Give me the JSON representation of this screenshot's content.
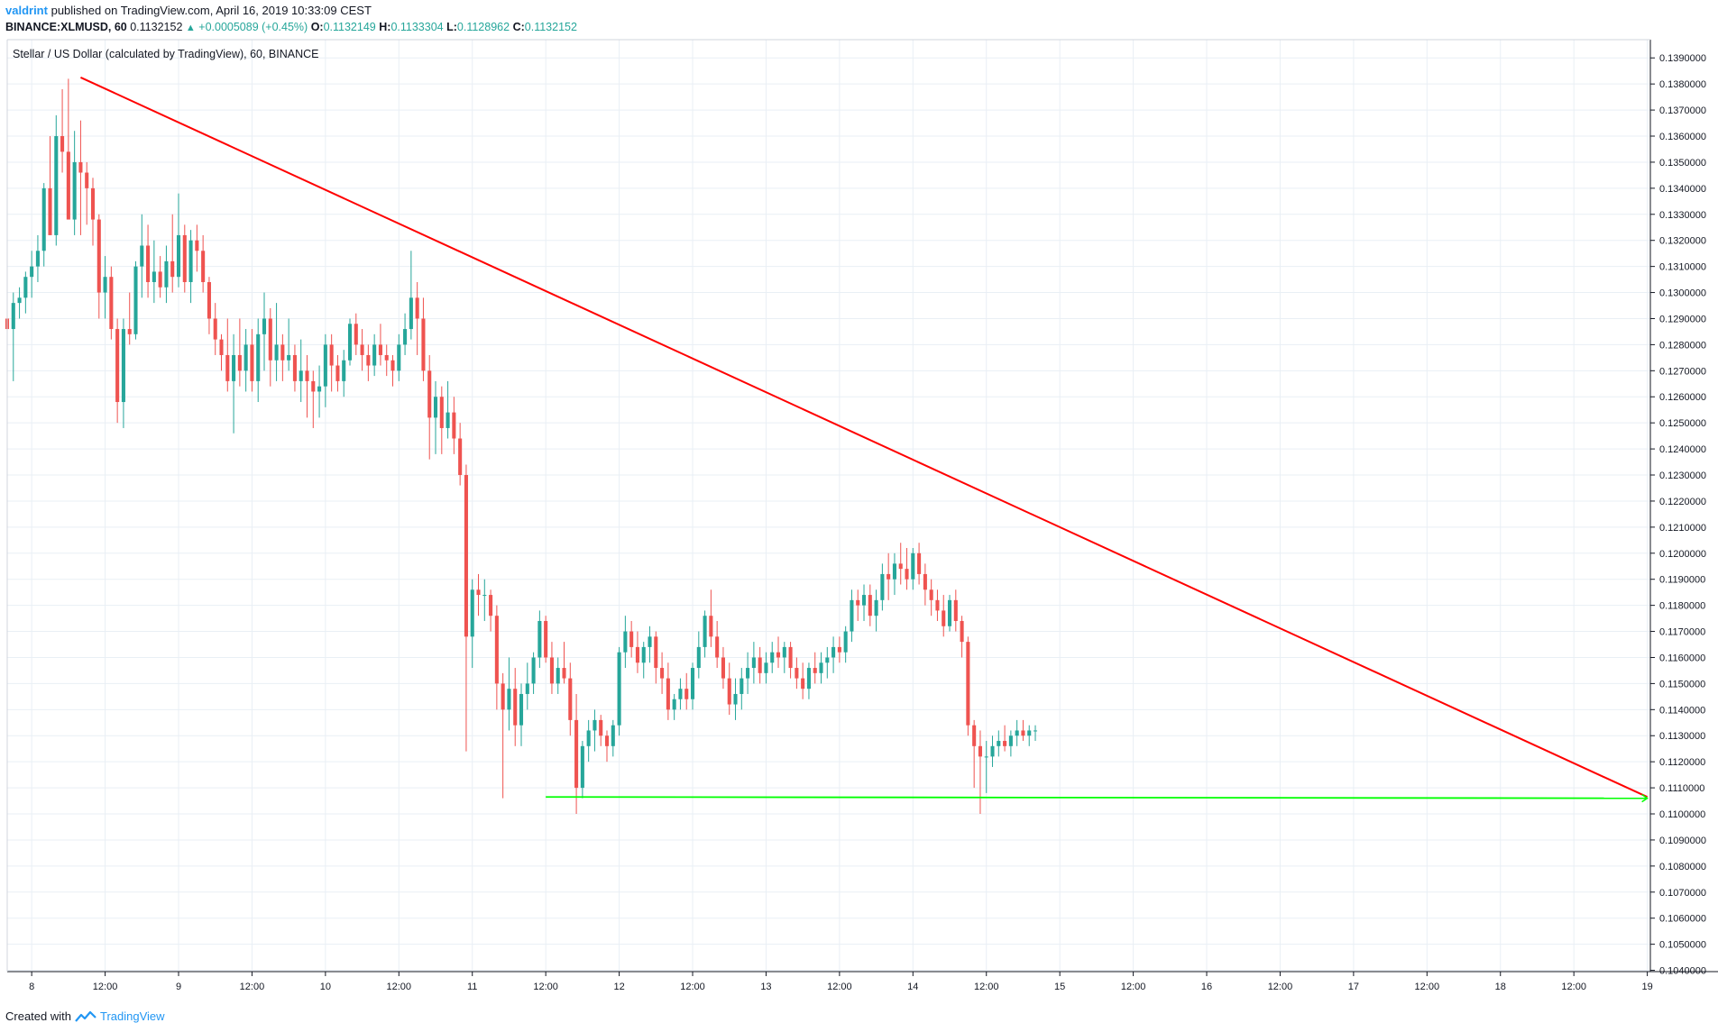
{
  "header": {
    "author": "valdrint",
    "published": "published on TradingView.com, April 16, 2019 10:33:09 CEST",
    "symbol": "BINANCE:XLMUSD, 60",
    "last": "0.1132152",
    "change": "+0.0005089 (+0.45%)",
    "o_label": "O:",
    "o_value": "0.1132149",
    "h_label": "H:",
    "h_value": "0.1133304",
    "l_label": "L:",
    "l_value": "0.1128962",
    "c_label": "C:",
    "c_value": "0.1132152"
  },
  "legend_title": "Stellar / US Dollar (calculated by TradingView), 60, BINANCE",
  "footer": {
    "created_with": "Created with",
    "brand": "TradingView"
  },
  "colors": {
    "up": "#26a69a",
    "down": "#ef5350",
    "resistance": "#ff0000",
    "support": "#00ff00",
    "grid": "#e9eff5",
    "axis": "#131722",
    "brand": "#2196f3"
  },
  "chart_data": {
    "type": "candlestick",
    "title": "Stellar / US Dollar (calculated by TradingView), 60, BINANCE",
    "interval_minutes": 60,
    "x_tick_labels": [
      "8",
      "12:00",
      "9",
      "12:00",
      "10",
      "12:00",
      "11",
      "12:00",
      "12",
      "12:00",
      "13",
      "12:00",
      "14",
      "12:00",
      "15",
      "12:00",
      "16",
      "12:00",
      "17",
      "12:00",
      "18",
      "12:00",
      "19"
    ],
    "x_tick_times": [
      "2019-04-08T00:00",
      "2019-04-08T12:00",
      "2019-04-09T00:00",
      "2019-04-09T12:00",
      "2019-04-10T00:00",
      "2019-04-10T12:00",
      "2019-04-11T00:00",
      "2019-04-11T12:00",
      "2019-04-12T00:00",
      "2019-04-12T12:00",
      "2019-04-13T00:00",
      "2019-04-13T12:00",
      "2019-04-14T00:00",
      "2019-04-14T12:00",
      "2019-04-15T00:00",
      "2019-04-15T12:00",
      "2019-04-16T00:00",
      "2019-04-16T12:00",
      "2019-04-17T00:00",
      "2019-04-17T12:00",
      "2019-04-18T00:00",
      "2019-04-18T12:00",
      "2019-04-19T00:00"
    ],
    "x_range": [
      "2019-04-07T20:00",
      "2019-04-19T00:30"
    ],
    "y_tick_labels": [
      "0.1040000",
      "0.1050000",
      "0.1060000",
      "0.1070000",
      "0.1080000",
      "0.1090000",
      "0.1100000",
      "0.1110000",
      "0.1120000",
      "0.1130000",
      "0.1140000",
      "0.1150000",
      "0.1160000",
      "0.1170000",
      "0.1180000",
      "0.1190000",
      "0.1200000",
      "0.1210000",
      "0.1220000",
      "0.1230000",
      "0.1240000",
      "0.1250000",
      "0.1260000",
      "0.1270000",
      "0.1280000",
      "0.1290000",
      "0.1300000",
      "0.1310000",
      "0.1320000",
      "0.1330000",
      "0.1340000",
      "0.1350000",
      "0.1360000",
      "0.1370000",
      "0.1380000",
      "0.1390000"
    ],
    "y_range": [
      0.10395,
      0.1397
    ],
    "start_time": "2019-04-07T20:00",
    "series_ohlc": [
      [
        0.129,
        0.1302,
        0.1284,
        0.1286
      ],
      [
        0.1286,
        0.13,
        0.1266,
        0.1296
      ],
      [
        0.1296,
        0.1302,
        0.129,
        0.1298
      ],
      [
        0.1298,
        0.1308,
        0.1292,
        0.1306
      ],
      [
        0.1306,
        0.1316,
        0.1298,
        0.131
      ],
      [
        0.131,
        0.1322,
        0.1304,
        0.1316
      ],
      [
        0.1316,
        0.1342,
        0.131,
        0.134
      ],
      [
        0.134,
        0.136,
        0.133,
        0.1322
      ],
      [
        0.1322,
        0.1368,
        0.1318,
        0.136
      ],
      [
        0.136,
        0.1378,
        0.1346,
        0.1354
      ],
      [
        0.1354,
        0.1382,
        0.133,
        0.1328
      ],
      [
        0.1328,
        0.1362,
        0.1322,
        0.135
      ],
      [
        0.135,
        0.1366,
        0.1322,
        0.1346
      ],
      [
        0.1346,
        0.135,
        0.1326,
        0.134
      ],
      [
        0.134,
        0.1344,
        0.1318,
        0.1328
      ],
      [
        0.1328,
        0.133,
        0.129,
        0.13
      ],
      [
        0.13,
        0.1314,
        0.129,
        0.1306
      ],
      [
        0.1306,
        0.131,
        0.1282,
        0.1286
      ],
      [
        0.1286,
        0.129,
        0.125,
        0.1258
      ],
      [
        0.1258,
        0.129,
        0.1248,
        0.1286
      ],
      [
        0.1286,
        0.13,
        0.128,
        0.1284
      ],
      [
        0.1284,
        0.1312,
        0.1282,
        0.131
      ],
      [
        0.131,
        0.133,
        0.1298,
        0.1318
      ],
      [
        0.1318,
        0.1326,
        0.1298,
        0.1304
      ],
      [
        0.1304,
        0.132,
        0.1296,
        0.1308
      ],
      [
        0.1308,
        0.1314,
        0.1298,
        0.1302
      ],
      [
        0.1302,
        0.1318,
        0.1296,
        0.1312
      ],
      [
        0.1312,
        0.133,
        0.13,
        0.1306
      ],
      [
        0.1306,
        0.1338,
        0.1302,
        0.1322
      ],
      [
        0.1322,
        0.1326,
        0.13,
        0.1304
      ],
      [
        0.1304,
        0.1324,
        0.1296,
        0.132
      ],
      [
        0.132,
        0.1326,
        0.1308,
        0.1316
      ],
      [
        0.1316,
        0.1322,
        0.13,
        0.1304
      ],
      [
        0.1304,
        0.1306,
        0.1284,
        0.129
      ],
      [
        0.129,
        0.1296,
        0.1276,
        0.1282
      ],
      [
        0.1282,
        0.1284,
        0.127,
        0.1276
      ],
      [
        0.1276,
        0.129,
        0.1262,
        0.1266
      ],
      [
        0.1266,
        0.1284,
        0.1246,
        0.1276
      ],
      [
        0.1276,
        0.129,
        0.1264,
        0.127
      ],
      [
        0.127,
        0.1286,
        0.1262,
        0.128
      ],
      [
        0.128,
        0.1286,
        0.1262,
        0.1266
      ],
      [
        0.1266,
        0.129,
        0.1258,
        0.1284
      ],
      [
        0.1284,
        0.13,
        0.127,
        0.129
      ],
      [
        0.129,
        0.1294,
        0.1264,
        0.1274
      ],
      [
        0.1274,
        0.1296,
        0.1266,
        0.128
      ],
      [
        0.128,
        0.1284,
        0.1266,
        0.1274
      ],
      [
        0.1274,
        0.129,
        0.127,
        0.1276
      ],
      [
        0.1276,
        0.128,
        0.1262,
        0.1266
      ],
      [
        0.1266,
        0.1282,
        0.1258,
        0.127
      ],
      [
        0.127,
        0.1276,
        0.1252,
        0.1266
      ],
      [
        0.1266,
        0.127,
        0.1248,
        0.1262
      ],
      [
        0.1262,
        0.1272,
        0.1252,
        0.1264
      ],
      [
        0.1264,
        0.1284,
        0.1256,
        0.128
      ],
      [
        0.128,
        0.1284,
        0.1262,
        0.1272
      ],
      [
        0.1272,
        0.1276,
        0.1262,
        0.1266
      ],
      [
        0.1266,
        0.1278,
        0.126,
        0.1274
      ],
      [
        0.1274,
        0.129,
        0.1272,
        0.1288
      ],
      [
        0.1288,
        0.1292,
        0.1276,
        0.128
      ],
      [
        0.128,
        0.1286,
        0.127,
        0.1276
      ],
      [
        0.1276,
        0.128,
        0.1266,
        0.1272
      ],
      [
        0.1272,
        0.1284,
        0.1268,
        0.128
      ],
      [
        0.128,
        0.1288,
        0.1272,
        0.1276
      ],
      [
        0.1276,
        0.128,
        0.1268,
        0.1274
      ],
      [
        0.1274,
        0.1276,
        0.1264,
        0.127
      ],
      [
        0.127,
        0.1284,
        0.1266,
        0.128
      ],
      [
        0.128,
        0.1292,
        0.1276,
        0.1286
      ],
      [
        0.1286,
        0.1316,
        0.1282,
        0.1298
      ],
      [
        0.1298,
        0.1304,
        0.1276,
        0.129
      ],
      [
        0.129,
        0.1298,
        0.1266,
        0.127
      ],
      [
        0.127,
        0.1276,
        0.1236,
        0.1252
      ],
      [
        0.1252,
        0.1266,
        0.1238,
        0.126
      ],
      [
        0.126,
        0.1264,
        0.1238,
        0.1248
      ],
      [
        0.1248,
        0.1266,
        0.1244,
        0.1254
      ],
      [
        0.1254,
        0.126,
        0.1238,
        0.1244
      ],
      [
        0.1244,
        0.125,
        0.1226,
        0.123
      ],
      [
        0.123,
        0.1234,
        0.1124,
        0.1168
      ],
      [
        0.1168,
        0.119,
        0.1156,
        0.1186
      ],
      [
        0.1186,
        0.1192,
        0.1176,
        0.1184
      ],
      [
        0.1184,
        0.119,
        0.1174,
        0.1184
      ],
      [
        0.1184,
        0.1186,
        0.117,
        0.1176
      ],
      [
        0.1176,
        0.118,
        0.114,
        0.115
      ],
      [
        0.115,
        0.1154,
        0.1106,
        0.114
      ],
      [
        0.114,
        0.116,
        0.1132,
        0.1148
      ],
      [
        0.1148,
        0.1156,
        0.1126,
        0.1134
      ],
      [
        0.1134,
        0.115,
        0.1126,
        0.1146
      ],
      [
        0.1146,
        0.1158,
        0.114,
        0.115
      ],
      [
        0.115,
        0.1162,
        0.1146,
        0.116
      ],
      [
        0.116,
        0.1178,
        0.1156,
        0.1174
      ],
      [
        0.1174,
        0.1176,
        0.1158,
        0.116
      ],
      [
        0.116,
        0.1166,
        0.1146,
        0.115
      ],
      [
        0.115,
        0.116,
        0.1146,
        0.1156
      ],
      [
        0.1156,
        0.1166,
        0.115,
        0.1152
      ],
      [
        0.1152,
        0.1158,
        0.113,
        0.1136
      ],
      [
        0.1136,
        0.1146,
        0.11,
        0.111
      ],
      [
        0.111,
        0.1128,
        0.1106,
        0.1126
      ],
      [
        0.1126,
        0.1136,
        0.112,
        0.1132
      ],
      [
        0.1132,
        0.114,
        0.1124,
        0.1136
      ],
      [
        0.1136,
        0.1138,
        0.1126,
        0.113
      ],
      [
        0.113,
        0.1132,
        0.112,
        0.1126
      ],
      [
        0.1126,
        0.1136,
        0.1122,
        0.1134
      ],
      [
        0.1134,
        0.1164,
        0.113,
        0.1162
      ],
      [
        0.1162,
        0.1176,
        0.1156,
        0.117
      ],
      [
        0.117,
        0.1174,
        0.116,
        0.1164
      ],
      [
        0.1164,
        0.117,
        0.1154,
        0.1158
      ],
      [
        0.1158,
        0.1166,
        0.1152,
        0.1164
      ],
      [
        0.1164,
        0.1172,
        0.1158,
        0.1168
      ],
      [
        0.1168,
        0.117,
        0.115,
        0.1156
      ],
      [
        0.1156,
        0.1162,
        0.1146,
        0.1152
      ],
      [
        0.1152,
        0.1158,
        0.1136,
        0.114
      ],
      [
        0.114,
        0.1146,
        0.1136,
        0.1144
      ],
      [
        0.1144,
        0.1152,
        0.114,
        0.1148
      ],
      [
        0.1148,
        0.1154,
        0.114,
        0.1144
      ],
      [
        0.1144,
        0.1158,
        0.114,
        0.1156
      ],
      [
        0.1156,
        0.117,
        0.1152,
        0.1164
      ],
      [
        0.1164,
        0.1178,
        0.116,
        0.1176
      ],
      [
        0.1176,
        0.1186,
        0.1164,
        0.1168
      ],
      [
        0.1168,
        0.1174,
        0.1156,
        0.116
      ],
      [
        0.116,
        0.1164,
        0.1148,
        0.1152
      ],
      [
        0.1152,
        0.1158,
        0.1138,
        0.1142
      ],
      [
        0.1142,
        0.1152,
        0.1136,
        0.1146
      ],
      [
        0.1146,
        0.1156,
        0.114,
        0.1152
      ],
      [
        0.1152,
        0.1162,
        0.1146,
        0.1156
      ],
      [
        0.1156,
        0.1166,
        0.115,
        0.116
      ],
      [
        0.116,
        0.1164,
        0.115,
        0.1154
      ],
      [
        0.1154,
        0.1162,
        0.115,
        0.1158
      ],
      [
        0.1158,
        0.1166,
        0.1154,
        0.1162
      ],
      [
        0.1162,
        0.1168,
        0.1156,
        0.116
      ],
      [
        0.116,
        0.1166,
        0.1154,
        0.1164
      ],
      [
        0.1164,
        0.1166,
        0.1152,
        0.1156
      ],
      [
        0.1156,
        0.116,
        0.1148,
        0.1152
      ],
      [
        0.1152,
        0.1158,
        0.1144,
        0.1148
      ],
      [
        0.1148,
        0.1158,
        0.1144,
        0.1156
      ],
      [
        0.1156,
        0.1162,
        0.115,
        0.1154
      ],
      [
        0.1154,
        0.1162,
        0.115,
        0.1158
      ],
      [
        0.1158,
        0.1164,
        0.1152,
        0.116
      ],
      [
        0.116,
        0.1168,
        0.1154,
        0.1164
      ],
      [
        0.1164,
        0.1168,
        0.1158,
        0.1162
      ],
      [
        0.1162,
        0.1172,
        0.1158,
        0.117
      ],
      [
        0.117,
        0.1186,
        0.1166,
        0.1182
      ],
      [
        0.1182,
        0.1186,
        0.1174,
        0.118
      ],
      [
        0.118,
        0.1188,
        0.1174,
        0.1184
      ],
      [
        0.1184,
        0.1188,
        0.1172,
        0.1176
      ],
      [
        0.1176,
        0.1186,
        0.117,
        0.1182
      ],
      [
        0.1182,
        0.1196,
        0.1178,
        0.1192
      ],
      [
        0.1192,
        0.12,
        0.1182,
        0.119
      ],
      [
        0.119,
        0.12,
        0.1184,
        0.1196
      ],
      [
        0.1196,
        0.1204,
        0.1188,
        0.1194
      ],
      [
        0.1194,
        0.1202,
        0.1186,
        0.119
      ],
      [
        0.119,
        0.1202,
        0.1186,
        0.12
      ],
      [
        0.12,
        0.1204,
        0.1188,
        0.1192
      ],
      [
        0.1192,
        0.1196,
        0.118,
        0.1186
      ],
      [
        0.1186,
        0.119,
        0.1176,
        0.1182
      ],
      [
        0.1182,
        0.1186,
        0.1174,
        0.1178
      ],
      [
        0.1178,
        0.1184,
        0.1168,
        0.1172
      ],
      [
        0.1172,
        0.1184,
        0.117,
        0.1182
      ],
      [
        0.1182,
        0.1186,
        0.117,
        0.1174
      ],
      [
        0.1174,
        0.1176,
        0.116,
        0.1166
      ],
      [
        0.1166,
        0.1168,
        0.113,
        0.1134
      ],
      [
        0.1134,
        0.1136,
        0.111,
        0.1126
      ],
      [
        0.1126,
        0.1132,
        0.11,
        0.1122
      ],
      [
        0.1122,
        0.1128,
        0.1108,
        0.1122
      ],
      [
        0.1122,
        0.113,
        0.1118,
        0.1126
      ],
      [
        0.1126,
        0.1132,
        0.1122,
        0.1128
      ],
      [
        0.1128,
        0.1134,
        0.1124,
        0.1126
      ],
      [
        0.1126,
        0.1132,
        0.1122,
        0.113
      ],
      [
        0.113,
        0.1136,
        0.1126,
        0.1132
      ],
      [
        0.1132,
        0.1136,
        0.1128,
        0.113
      ],
      [
        0.113,
        0.1134,
        0.1126,
        0.1132
      ],
      [
        0.1132,
        0.1134,
        0.1128,
        0.1132
      ]
    ],
    "annotations": [
      {
        "type": "trendline",
        "name": "descending resistance",
        "color": "#ff0000",
        "from": [
          "2019-04-08T08:00",
          0.13825
        ],
        "to": [
          "2019-04-19T00:00",
          0.11065
        ]
      },
      {
        "type": "horizontal",
        "name": "support",
        "color": "#00ff00",
        "from": [
          "2019-04-11T12:00",
          0.11065
        ],
        "to": [
          "2019-04-19T00:00",
          0.1106
        ]
      }
    ],
    "grid": true,
    "legend": "top-left"
  }
}
